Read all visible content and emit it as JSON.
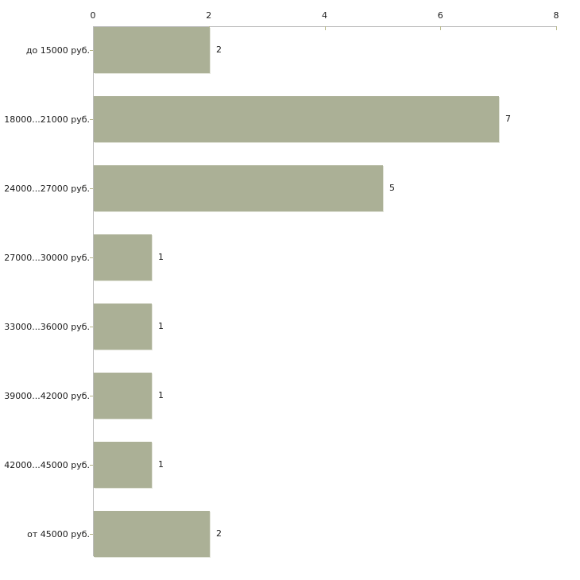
{
  "chart_data": {
    "type": "bar",
    "orientation": "horizontal",
    "title": "",
    "xlabel": "",
    "ylabel": "",
    "categories": [
      "до 15000 руб.",
      "18000...21000 руб.",
      "24000...27000 руб.",
      "27000...30000 руб.",
      "33000...36000 руб.",
      "39000...42000 руб.",
      "42000...45000 руб.",
      "от 45000 руб."
    ],
    "values": [
      2,
      7,
      5,
      1,
      1,
      1,
      1,
      2
    ],
    "value_labels": [
      "2",
      "7",
      "5",
      "1",
      "1",
      "1",
      "1",
      "2"
    ],
    "xlim": [
      0,
      8
    ],
    "x_ticks": [
      0,
      2,
      4,
      6,
      8
    ],
    "x_tick_labels": [
      "0",
      "2",
      "4",
      "6",
      "8"
    ],
    "axis_position": "top",
    "grid": false,
    "legend": "none",
    "colors": {
      "bar": "#abb096",
      "axis_line": "#bcbcbc",
      "x_tick_mark": "#b9b98a",
      "category_tick_mark": "#b3b384",
      "text": "#1a1a1a",
      "background": "#ffffff"
    }
  }
}
